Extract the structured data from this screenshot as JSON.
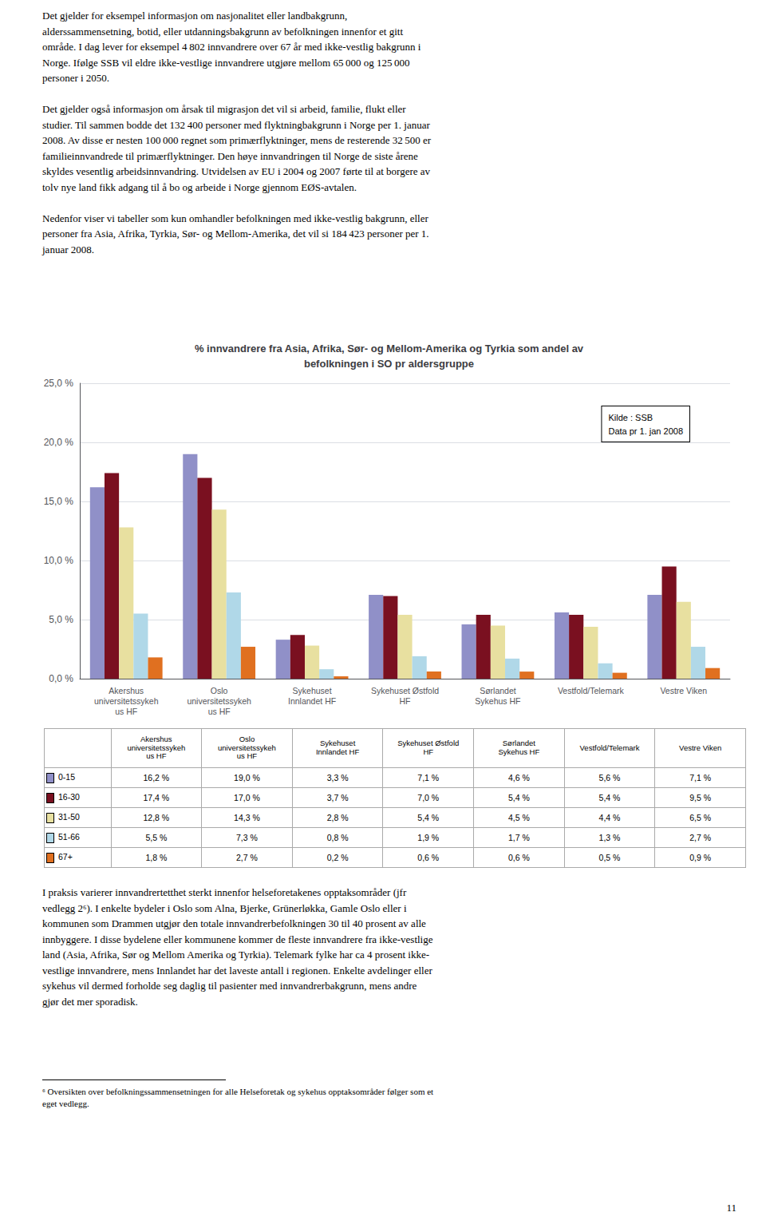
{
  "text_top": "Det gjelder for eksempel informasjon om nasjonalitet eller landbakgrunn,\nalderssammensetning, botid, eller utdanningsbakgrunn av befolkningen innenfor et gitt\nområde. I dag lever for eksempel 4 802 innvandrere over 67 år med ikke-vestlig bakgrunn i\nNorge. Ifølge SSB vil eldre ikke-vestlige innvandrere utgjøre mellom 65 000 og 125 000\npersoner i 2050.\n\nDet gjelder også informasjon om årsak til migrasjon det vil si arbeid, familie, flukt eller\nstudier. Til sammen bodde det 132 400 personer med flyktningbakgrunn i Norge per 1. januar\n2008. Av disse er nesten 100 000 regnet som primærflyktninger, mens de resterende 32 500 er\nfamilieinnvandrede til primærflyktninger. Den høye innvandringen til Norge de siste årene\nskyldes vesentlig arbeidsinnvandring. Utvidelsen av EU i 2004 og 2007 førte til at borgere av\ntolv nye land fikk adgang til å bo og arbeide i Norge gjennom EØS-avtalen.\n\nNedenfor viser vi tabeller som kun omhandler befolkningen med ikke-vestlig bakgrunn, eller\npersoner fra Asia, Afrika, Tyrkia, Sør- og Mellom-Amerika, det vil si 184 423 personer per 1.\njanuar 2008.",
  "text_bottom": "I praksis varierer innvandrertetthet sterkt innenfor helseforetakenes opptaksområder (jfr\nvedlegg 2⁶). I enkelte bydeler i Oslo som Alna, Bjerke, Grünerløkka, Gamle Oslo eller i\nkommunen som Drammen utgjør den totale innvandrerbefolkningen 30 til 40 prosent av alle\ninnbyggere. I disse bydelene eller kommunene kommer de fleste innvandrere fra ikke-vestlige\nland (Asia, Afrika, Sør og Mellom Amerika og Tyrkia). Telemark fylke har ca 4 prosent ikke-\nvestlige innvandrere, mens Innlandet har det laveste antall i regionen. Enkelte avdelinger eller\nsykehus vil dermed forholde seg daglig til pasienter med innvandrerbakgrunn, mens andre\ngjør det mer sporadisk.",
  "footnote": "⁶ Oversikten over befolkningssammensetningen for alle Helseforetak og sykehus opptaksområder følger som et\neget vedlegg.",
  "page_number": "11",
  "chart_data": {
    "type": "bar",
    "title": "% innvandrere fra Asia, Afrika, Sør- og Mellom-Amerika og Tyrkia som andel av\nbefolkningen i SO pr aldersgruppe",
    "annotations": [
      "Kilde : SSB\nData pr 1. jan 2008"
    ],
    "categories": [
      "Akershus\nuniversitetssykeh\nus HF",
      "Oslo\nuniversitetssykeh\nus HF",
      "Sykehuset\nInnlandet HF",
      "Sykehuset Østfold\nHF",
      "Sørlandet\nSykehus HF",
      "Vestfold/Telemark",
      "Vestre Viken"
    ],
    "series": [
      {
        "name": "0-15",
        "color": "#9090c8",
        "values": [
          16.2,
          19.0,
          3.3,
          7.1,
          4.6,
          5.6,
          7.1
        ],
        "value_labels": [
          "16,2 %",
          "19,0 %",
          "3,3 %",
          "7,1 %",
          "4,6 %",
          "5,6 %",
          "7,1 %"
        ]
      },
      {
        "name": "16-30",
        "color": "#7a1020",
        "values": [
          17.4,
          17.0,
          3.7,
          7.0,
          5.4,
          5.4,
          9.5
        ],
        "value_labels": [
          "17,4 %",
          "17,0 %",
          "3,7 %",
          "7,0 %",
          "5,4 %",
          "5,4 %",
          "9,5 %"
        ]
      },
      {
        "name": "31-50",
        "color": "#e8e0a0",
        "values": [
          12.8,
          14.3,
          2.8,
          5.4,
          4.5,
          4.4,
          6.5
        ],
        "value_labels": [
          "12,8 %",
          "14,3 %",
          "2,8 %",
          "5,4 %",
          "4,5 %",
          "4,4 %",
          "6,5 %"
        ]
      },
      {
        "name": "51-66",
        "color": "#b0d8e8",
        "values": [
          5.5,
          7.3,
          0.8,
          1.9,
          1.7,
          1.3,
          2.7
        ],
        "value_labels": [
          "5,5 %",
          "7,3 %",
          "0,8 %",
          "1,9 %",
          "1,7 %",
          "1,3 %",
          "2,7 %"
        ]
      },
      {
        "name": "67+",
        "color": "#e07020",
        "values": [
          1.8,
          2.7,
          0.2,
          0.6,
          0.6,
          0.5,
          0.9
        ],
        "value_labels": [
          "1,8 %",
          "2,7 %",
          "0,2 %",
          "0,6 %",
          "0,6 %",
          "0,5 %",
          "0,9 %"
        ]
      }
    ],
    "ylim": [
      0,
      25
    ],
    "yticks": [
      {
        "value": 0,
        "label": "0,0 %"
      },
      {
        "value": 5,
        "label": "5,0 %"
      },
      {
        "value": 10,
        "label": "10,0 %"
      },
      {
        "value": 15,
        "label": "15,0 %"
      },
      {
        "value": 20,
        "label": "20,0 %"
      },
      {
        "value": 25,
        "label": "25,0 %"
      }
    ],
    "grid": true
  }
}
